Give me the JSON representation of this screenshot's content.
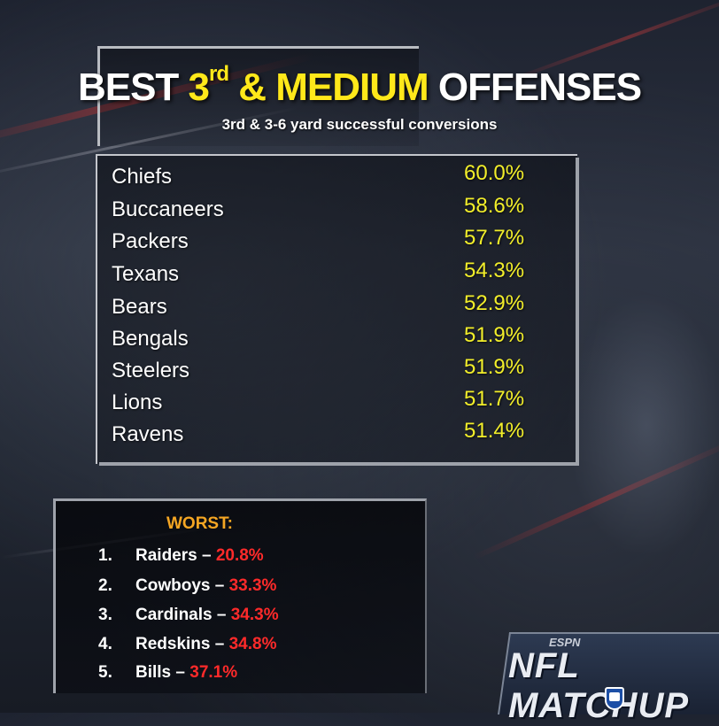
{
  "title": {
    "part1": "BEST ",
    "part2": "3",
    "sup": "rd",
    "part3": " & MEDIUM",
    "part4": " OFFENSES"
  },
  "subtitle": "3rd & 3-6 yard successful conversions",
  "best": [
    {
      "team": "Chiefs",
      "pct": "60.0%"
    },
    {
      "team": "Buccaneers",
      "pct": "58.6%"
    },
    {
      "team": "Packers",
      "pct": "57.7%"
    },
    {
      "team": "Texans",
      "pct": "54.3%"
    },
    {
      "team": "Bears",
      "pct": "52.9%"
    },
    {
      "team": "Bengals",
      "pct": "51.9%"
    },
    {
      "team": "Steelers",
      "pct": "51.9%"
    },
    {
      "team": "Lions",
      "pct": "51.7%"
    },
    {
      "team": "Ravens",
      "pct": "51.4%"
    }
  ],
  "worst": {
    "title": "WORST:",
    "items": [
      {
        "num": "1.",
        "team": "Raiders – ",
        "pct": "20.8%"
      },
      {
        "num": "2.",
        "team": "Cowboys – ",
        "pct": "33.3%"
      },
      {
        "num": "3.",
        "team": "Cardinals – ",
        "pct": "34.3%"
      },
      {
        "num": "4.",
        "team": "Redskins – ",
        "pct": "34.8%"
      },
      {
        "num": "5.",
        "team": "Bills – ",
        "pct": "37.1%"
      }
    ]
  },
  "logo": {
    "network": "ESPN",
    "show": "NFL MATCHUP",
    "icon": "nfl-shield-icon"
  },
  "colors": {
    "highlight_yellow": "#ffe81a",
    "percent_yellow": "#f2ee2a",
    "worst_orange": "#f5a623",
    "worst_red": "#ff2a2a"
  }
}
